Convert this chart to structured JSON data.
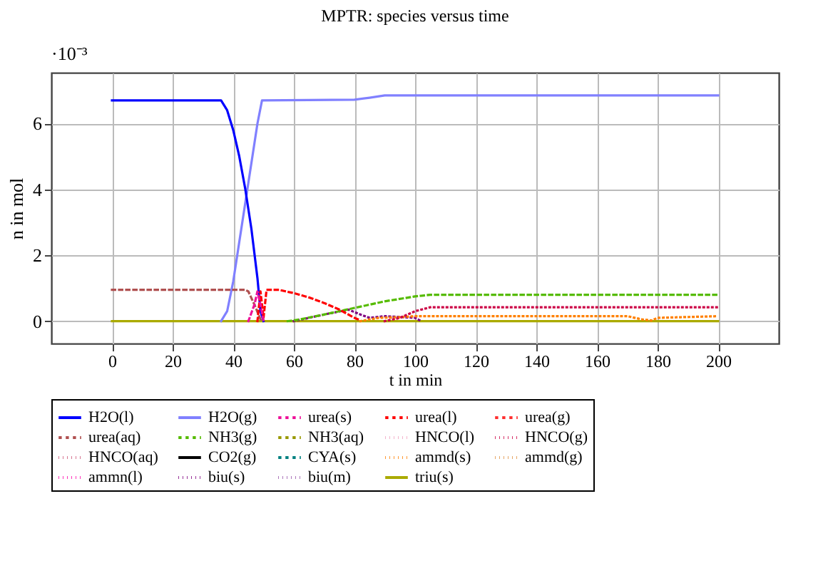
{
  "chart_data": {
    "type": "line",
    "title": "MPTR: species versus time",
    "xlabel": "t in min",
    "ylabel": "n in mol",
    "annotations": [
      "·10⁻³"
    ],
    "xlim": [
      -20,
      220
    ],
    "xticks": [
      0,
      20,
      40,
      60,
      80,
      100,
      120,
      140,
      160,
      180,
      200
    ],
    "ylim": [
      -0.68,
      7.54
    ],
    "yticks": [
      0,
      2,
      4,
      6
    ],
    "grid": true,
    "legend": "bottom",
    "marker": "none",
    "series": [
      {
        "name": "H2O(l)",
        "color": "#0000ff",
        "line_style": "solid",
        "x": [
          0,
          36,
          38,
          40,
          42,
          44,
          46,
          48,
          49,
          50
        ],
        "values": [
          6.7,
          6.7,
          6.4,
          5.8,
          5.0,
          4.0,
          2.8,
          1.3,
          0.3,
          0.0
        ]
      },
      {
        "name": "H2O(g)",
        "color": "#8080ff",
        "line_style": "solid",
        "x": [
          36,
          38,
          40,
          42,
          44,
          46,
          48,
          49.5,
          80,
          85,
          90,
          200
        ],
        "values": [
          0,
          0.3,
          1.2,
          2.4,
          3.6,
          4.8,
          6.0,
          6.7,
          6.72,
          6.78,
          6.85,
          6.85
        ]
      },
      {
        "name": "urea(s)",
        "color": "#ee1199",
        "line_style": "dashed",
        "x": [
          45,
          47,
          48,
          49,
          50
        ],
        "values": [
          0,
          0.5,
          0.9,
          0.5,
          0
        ]
      },
      {
        "name": "urea(l)",
        "color": "#ff0000",
        "line_style": "dashed",
        "x": [
          48,
          49,
          50,
          51,
          55,
          60,
          65,
          70,
          75,
          80,
          82
        ],
        "values": [
          0,
          0.9,
          0.1,
          0.95,
          0.95,
          0.85,
          0.72,
          0.55,
          0.35,
          0.1,
          0.02
        ]
      },
      {
        "name": "urea(g)",
        "color": "#ff3030",
        "line_style": "dashed"
      },
      {
        "name": "urea(aq)",
        "color": "#b05050",
        "line_style": "dashed",
        "x": [
          0,
          44,
          45,
          47,
          49,
          50
        ],
        "values": [
          0.95,
          0.95,
          0.9,
          0.5,
          0.05,
          0
        ]
      },
      {
        "name": "NH3(g)",
        "color": "#55bb00",
        "line_style": "dashed",
        "x": [
          58,
          62,
          70,
          80,
          90,
          100,
          105,
          200
        ],
        "values": [
          0,
          0.05,
          0.2,
          0.4,
          0.6,
          0.75,
          0.8,
          0.8
        ]
      },
      {
        "name": "NH3(aq)",
        "color": "#999900",
        "line_style": "dashed"
      },
      {
        "name": "HNCO(l)",
        "color": "#f0a0c0",
        "line_style": "dotted"
      },
      {
        "name": "HNCO(g)",
        "color": "#cc0044",
        "line_style": "dotted",
        "x": [
          90,
          95,
          100,
          105,
          200
        ],
        "values": [
          0,
          0.1,
          0.3,
          0.42,
          0.42
        ]
      },
      {
        "name": "HNCO(aq)",
        "color": "#cc5577",
        "line_style": "dotted"
      },
      {
        "name": "CO2(g)",
        "color": "#000000",
        "line_style": "solid"
      },
      {
        "name": "CYA(s)",
        "color": "#008080",
        "line_style": "dashed"
      },
      {
        "name": "ammd(s)",
        "color": "#ff8000",
        "line_style": "dotted",
        "x": [
          82,
          88,
          95,
          100,
          170,
          175,
          178,
          180,
          200
        ],
        "values": [
          0,
          0.1,
          0.12,
          0.15,
          0.15,
          0.05,
          0.02,
          0.1,
          0.15
        ]
      },
      {
        "name": "ammd(g)",
        "color": "#e09040",
        "line_style": "dotted"
      },
      {
        "name": "ammn(l)",
        "color": "#ff00aa",
        "line_style": "dotted"
      },
      {
        "name": "biu(s)",
        "color": "#800080",
        "line_style": "dotted",
        "x": [
          60,
          65,
          70,
          78,
          82,
          85,
          90,
          100,
          102
        ],
        "values": [
          0,
          0.1,
          0.2,
          0.35,
          0.2,
          0.1,
          0.15,
          0.1,
          0
        ]
      },
      {
        "name": "biu(m)",
        "color": "#9955aa",
        "line_style": "dotted"
      },
      {
        "name": "triu(s)",
        "color": "#aaaa00",
        "line_style": "solid",
        "x": [
          0,
          200
        ],
        "values": [
          0,
          0
        ]
      }
    ]
  }
}
